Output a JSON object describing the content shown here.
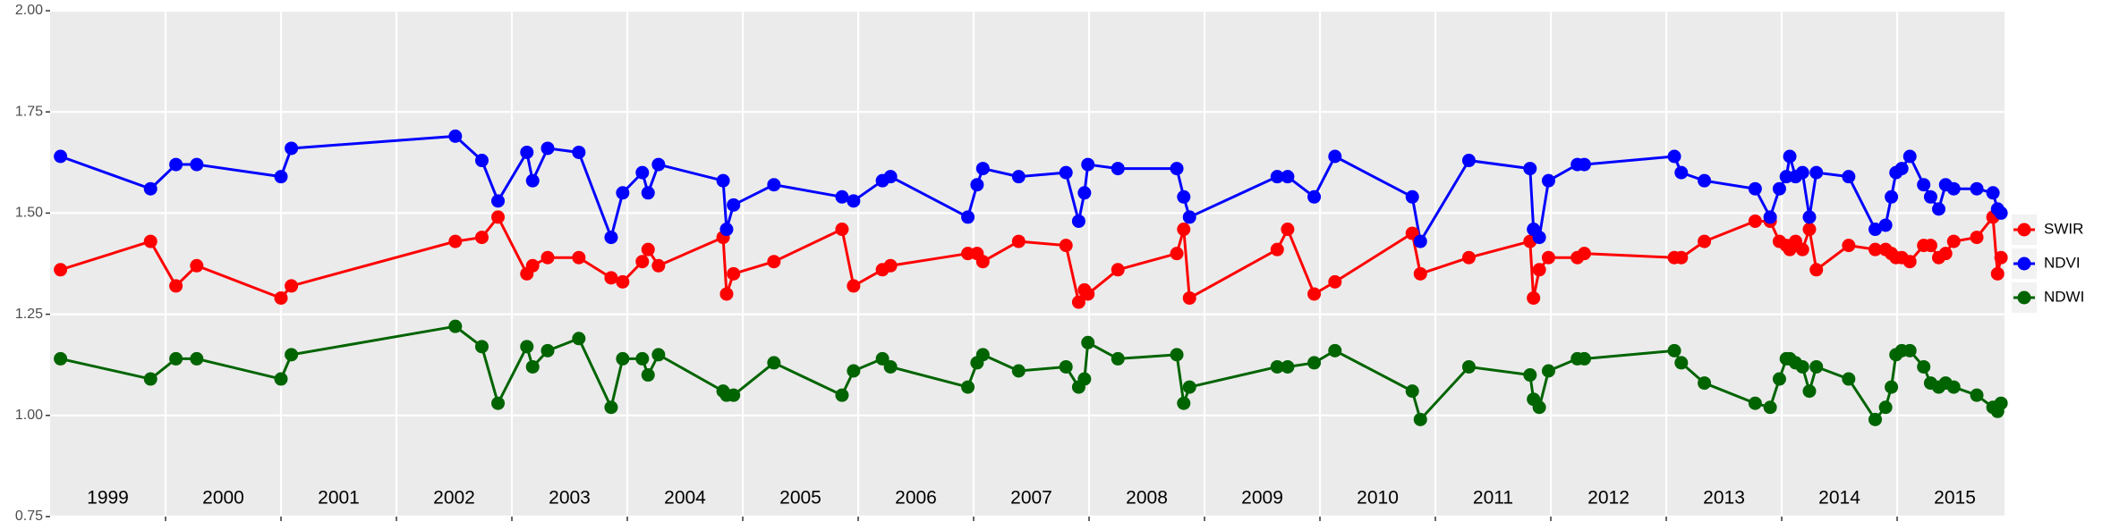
{
  "chart_data": {
    "type": "line",
    "x": [
      1999.09,
      1999.87,
      2000.09,
      2000.27,
      2001.0,
      2001.09,
      2002.51,
      2002.74,
      2002.88,
      2003.13,
      2003.18,
      2003.31,
      2003.58,
      2003.86,
      2003.96,
      2004.13,
      2004.18,
      2004.27,
      2004.83,
      2004.86,
      2004.92,
      2005.27,
      2005.86,
      2005.96,
      2006.21,
      2006.28,
      2006.95,
      2007.03,
      2007.08,
      2007.39,
      2007.8,
      2007.91,
      2007.96,
      2007.99,
      2008.25,
      2008.76,
      2008.82,
      2008.87,
      2009.63,
      2009.72,
      2009.95,
      2010.13,
      2010.8,
      2010.87,
      2011.29,
      2011.82,
      2011.85,
      2011.9,
      2011.98,
      2012.23,
      2012.29,
      2013.07,
      2013.13,
      2013.33,
      2013.77,
      2013.9,
      2013.98,
      2014.04,
      2014.07,
      2014.12,
      2014.18,
      2014.24,
      2014.3,
      2014.58,
      2014.81,
      2014.9,
      2014.95,
      2014.99,
      2015.04,
      2015.11,
      2015.23,
      2015.29,
      2015.36,
      2015.42,
      2015.49,
      2015.69,
      2015.83,
      2015.87,
      2015.9
    ],
    "series": [
      {
        "name": "SWIR",
        "color": "#ff0000",
        "values": [
          1.36,
          1.43,
          1.32,
          1.37,
          1.29,
          1.32,
          1.43,
          1.44,
          1.49,
          1.35,
          1.37,
          1.39,
          1.39,
          1.34,
          1.33,
          1.38,
          1.41,
          1.37,
          1.44,
          1.3,
          1.35,
          1.38,
          1.46,
          1.32,
          1.36,
          1.37,
          1.4,
          1.4,
          1.38,
          1.43,
          1.42,
          1.28,
          1.31,
          1.3,
          1.36,
          1.4,
          1.46,
          1.29,
          1.41,
          1.46,
          1.3,
          1.33,
          1.45,
          1.35,
          1.39,
          1.43,
          1.29,
          1.36,
          1.39,
          1.39,
          1.4,
          1.39,
          1.39,
          1.43,
          1.48,
          1.48,
          1.43,
          1.42,
          1.41,
          1.43,
          1.41,
          1.46,
          1.36,
          1.42,
          1.41,
          1.41,
          1.4,
          1.39,
          1.39,
          1.38,
          1.42,
          1.42,
          1.39,
          1.4,
          1.43,
          1.44,
          1.49,
          1.35,
          1.39
        ]
      },
      {
        "name": "NDVI",
        "color": "#0000ff",
        "values": [
          1.64,
          1.56,
          1.62,
          1.62,
          1.59,
          1.66,
          1.69,
          1.63,
          1.53,
          1.65,
          1.58,
          1.66,
          1.65,
          1.44,
          1.55,
          1.6,
          1.55,
          1.62,
          1.58,
          1.46,
          1.52,
          1.57,
          1.54,
          1.53,
          1.58,
          1.59,
          1.49,
          1.57,
          1.61,
          1.59,
          1.6,
          1.48,
          1.55,
          1.62,
          1.61,
          1.61,
          1.54,
          1.49,
          1.59,
          1.59,
          1.54,
          1.64,
          1.54,
          1.43,
          1.63,
          1.61,
          1.46,
          1.44,
          1.58,
          1.62,
          1.62,
          1.64,
          1.6,
          1.58,
          1.56,
          1.49,
          1.56,
          1.59,
          1.64,
          1.59,
          1.6,
          1.49,
          1.6,
          1.59,
          1.46,
          1.47,
          1.54,
          1.6,
          1.61,
          1.64,
          1.57,
          1.54,
          1.51,
          1.57,
          1.56,
          1.56,
          1.55,
          1.51,
          1.5
        ]
      },
      {
        "name": "NDWI",
        "color": "#006400",
        "values": [
          1.14,
          1.09,
          1.14,
          1.14,
          1.09,
          1.15,
          1.22,
          1.17,
          1.03,
          1.17,
          1.12,
          1.16,
          1.19,
          1.02,
          1.14,
          1.14,
          1.1,
          1.15,
          1.06,
          1.05,
          1.05,
          1.13,
          1.05,
          1.11,
          1.14,
          1.12,
          1.07,
          1.13,
          1.15,
          1.11,
          1.12,
          1.07,
          1.09,
          1.18,
          1.14,
          1.15,
          1.03,
          1.07,
          1.12,
          1.12,
          1.13,
          1.16,
          1.06,
          0.99,
          1.12,
          1.1,
          1.04,
          1.02,
          1.11,
          1.14,
          1.14,
          1.16,
          1.13,
          1.08,
          1.03,
          1.02,
          1.09,
          1.14,
          1.14,
          1.13,
          1.12,
          1.06,
          1.12,
          1.09,
          0.99,
          1.02,
          1.07,
          1.15,
          1.16,
          1.16,
          1.12,
          1.08,
          1.07,
          1.08,
          1.07,
          1.05,
          1.02,
          1.01,
          1.03
        ]
      }
    ],
    "xlim": [
      1999.0,
      2015.93
    ],
    "xticks": [
      {
        "value": 1999.5,
        "label": "1999"
      },
      {
        "value": 2000.5,
        "label": "2000"
      },
      {
        "value": 2001.5,
        "label": "2001"
      },
      {
        "value": 2002.5,
        "label": "2002"
      },
      {
        "value": 2003.5,
        "label": "2003"
      },
      {
        "value": 2004.5,
        "label": "2004"
      },
      {
        "value": 2005.5,
        "label": "2005"
      },
      {
        "value": 2006.5,
        "label": "2006"
      },
      {
        "value": 2007.5,
        "label": "2007"
      },
      {
        "value": 2008.5,
        "label": "2008"
      },
      {
        "value": 2009.5,
        "label": "2009"
      },
      {
        "value": 2010.5,
        "label": "2010"
      },
      {
        "value": 2011.5,
        "label": "2011"
      },
      {
        "value": 2012.5,
        "label": "2012"
      },
      {
        "value": 2013.5,
        "label": "2013"
      },
      {
        "value": 2014.5,
        "label": "2014"
      },
      {
        "value": 2015.5,
        "label": "2015"
      }
    ],
    "xgrid": [
      2000,
      2001,
      2002,
      2003,
      2004,
      2005,
      2006,
      2007,
      2008,
      2009,
      2010,
      2011,
      2012,
      2013,
      2014,
      2015
    ],
    "ylim": [
      0.75,
      2.0
    ],
    "yticks": [
      0.75,
      {
        "value": 1,
        "label": "1.00"
      },
      1.25,
      {
        "value": 1.5,
        "label": "1.50"
      },
      1.75,
      {
        "value": 2,
        "label": "2.00"
      }
    ],
    "grid": true,
    "legend": "right"
  }
}
